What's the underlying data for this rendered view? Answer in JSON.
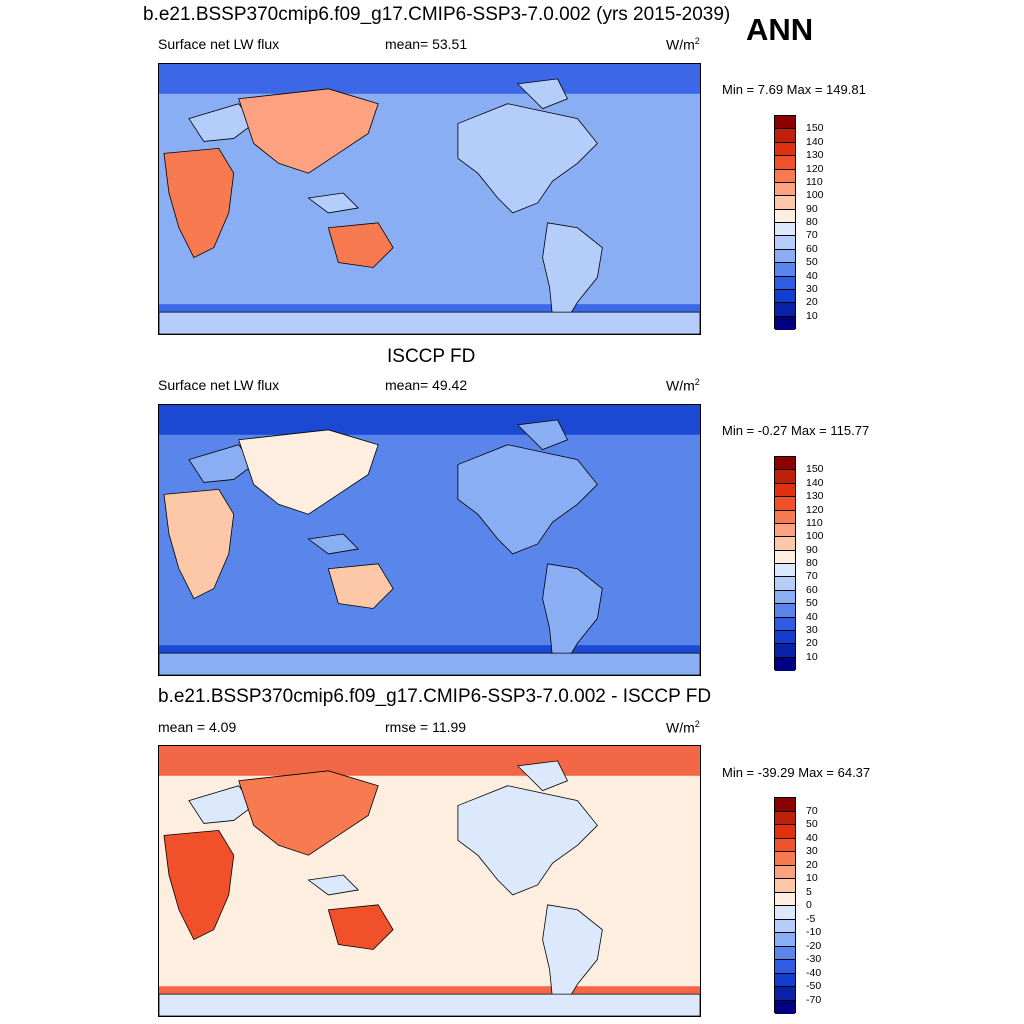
{
  "header": {
    "title": "b.e21.BSSP370cmip6.f09_g17.CMIP6-SSP3-7.0.002 (yrs 2015-2039)",
    "season": "ANN"
  },
  "units": "W/m",
  "units_exponent": "2",
  "panels": [
    {
      "id": "model",
      "left_label": "Surface net LW flux",
      "center_label": "mean=  53.51",
      "minmax": "Min =   7.69 Max = 149.81",
      "colorbar": {
        "ticks": [
          "150",
          "140",
          "130",
          "120",
          "110",
          "100",
          "90",
          "80",
          "70",
          "60",
          "50",
          "40",
          "30",
          "20",
          "10"
        ],
        "colors": [
          "#8b0000",
          "#c0200a",
          "#e03010",
          "#f0502a",
          "#f87a50",
          "#fca280",
          "#fcc8a8",
          "#fdeee0",
          "#dce8fc",
          "#b4cdfa",
          "#8aaef4",
          "#5a86ec",
          "#2e5ce4",
          "#123ed0",
          "#0a22a8",
          "#000080"
        ]
      },
      "map": {
        "base_color": "#8aaef4",
        "polar_color": "#2e5ce4",
        "desert_colors": [
          "#f87a50",
          "#fca280"
        ],
        "land_color": "#b4cdfa"
      }
    },
    {
      "id": "obs",
      "title": "ISCCP FD",
      "left_label": "Surface net LW flux",
      "center_label": "mean=  49.42",
      "minmax": "Min =  -0.27 Max = 115.77",
      "colorbar": {
        "ticks": [
          "150",
          "140",
          "130",
          "120",
          "110",
          "100",
          "90",
          "80",
          "70",
          "60",
          "50",
          "40",
          "30",
          "20",
          "10"
        ],
        "colors": [
          "#8b0000",
          "#c0200a",
          "#e03010",
          "#f0502a",
          "#f87a50",
          "#fca280",
          "#fcc8a8",
          "#fdeee0",
          "#dce8fc",
          "#b4cdfa",
          "#8aaef4",
          "#5a86ec",
          "#2e5ce4",
          "#123ed0",
          "#0a22a8",
          "#000080"
        ]
      },
      "map": {
        "base_color": "#5a86ec",
        "polar_color": "#123ed0",
        "desert_colors": [
          "#fcc8a8",
          "#fdeee0"
        ],
        "land_color": "#8aaef4"
      }
    },
    {
      "id": "diff",
      "title": "b.e21.BSSP370cmip6.f09_g17.CMIP6-SSP3-7.0.002 - ISCCP FD",
      "left_label": "mean =   4.09",
      "center_label": "rmse =  11.99",
      "minmax": "Min = -39.29 Max =  64.37",
      "colorbar": {
        "ticks": [
          "70",
          "50",
          "40",
          "30",
          "20",
          "10",
          "5",
          "0",
          "-5",
          "-10",
          "-20",
          "-30",
          "-40",
          "-50",
          "-70"
        ],
        "colors": [
          "#8b0000",
          "#c0200a",
          "#e03010",
          "#f0502a",
          "#f87a50",
          "#fca280",
          "#fcc8a8",
          "#fdeee0",
          "#dce8fc",
          "#b4cdfa",
          "#8aaef4",
          "#5a86ec",
          "#2e5ce4",
          "#123ed0",
          "#0a22a8",
          "#000080"
        ]
      },
      "map": {
        "base_color": "#fdeee0",
        "polar_color": "#f0502a",
        "desert_colors": [
          "#f0502a",
          "#f87a50"
        ],
        "land_color": "#dce8fc"
      }
    }
  ]
}
